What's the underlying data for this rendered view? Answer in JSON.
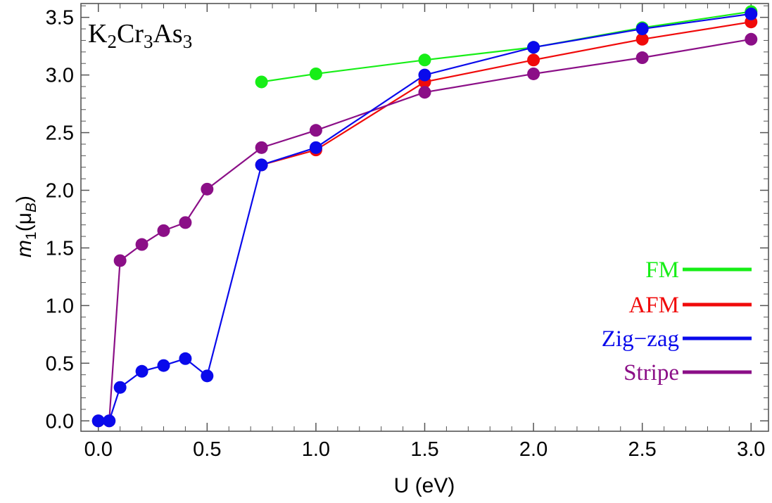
{
  "chart_data": {
    "type": "line",
    "title": "K2Cr3As3",
    "title_parts": [
      {
        "text": "K",
        "sub": false
      },
      {
        "text": "2",
        "sub": true
      },
      {
        "text": "Cr",
        "sub": false
      },
      {
        "text": "3",
        "sub": true
      },
      {
        "text": "As",
        "sub": false
      },
      {
        "text": "3",
        "sub": true
      }
    ],
    "xlabel": "U (eV)",
    "ylabel": {
      "m": "m",
      "m_sub": "1",
      "open": "(μ",
      "b_sub": "B",
      "close": ")"
    },
    "xlim": [
      -0.08,
      3.08
    ],
    "ylim": [
      -0.09,
      3.62
    ],
    "xticks": [
      "0.0",
      "0.5",
      "1.0",
      "1.5",
      "2.0",
      "2.5",
      "3.0"
    ],
    "yticks": [
      "0.0",
      "0.5",
      "1.0",
      "1.5",
      "2.0",
      "2.5",
      "3.0",
      "3.5"
    ],
    "legend_position": "right",
    "grid": false,
    "series": [
      {
        "name": "Stripe",
        "color": "#8B0F87",
        "x": [
          0.0,
          0.05,
          0.1,
          0.2,
          0.3,
          0.4,
          0.5,
          0.75,
          1.0,
          1.5,
          2.0,
          2.5,
          3.0
        ],
        "y": [
          0.0,
          0.0,
          1.39,
          1.53,
          1.65,
          1.72,
          2.01,
          2.37,
          2.52,
          2.85,
          3.01,
          3.15,
          3.31
        ]
      },
      {
        "name": "Zig-zag",
        "color": "#0A0AEB",
        "x": [
          0.0,
          0.05,
          0.1,
          0.2,
          0.3,
          0.4,
          0.5,
          0.75,
          1.0,
          1.5,
          2.0,
          2.5,
          3.0
        ],
        "y": [
          0.0,
          0.0,
          0.29,
          0.43,
          0.48,
          0.54,
          0.39,
          2.22,
          2.37,
          3.0,
          3.24,
          3.4,
          3.53
        ]
      },
      {
        "name": "AFM",
        "color": "#F00A0A",
        "x": [
          0.75,
          1.0,
          1.5,
          2.0,
          2.5,
          3.0
        ],
        "y": [
          2.22,
          2.35,
          2.94,
          3.13,
          3.31,
          3.46
        ]
      },
      {
        "name": "FM",
        "color": "#17EE17",
        "x": [
          0.75,
          1.0,
          1.5,
          2.0,
          2.5,
          3.0
        ],
        "y": [
          2.94,
          3.01,
          3.13,
          3.24,
          3.41,
          3.55
        ]
      }
    ],
    "draw_order": [
      "FM",
      "AFM",
      "Stripe",
      "Zig-zag"
    ],
    "legend_order": [
      "FM",
      "AFM",
      "Zig-zag",
      "Stripe"
    ],
    "legend_labels": {
      "FM": "FM",
      "AFM": "AFM",
      "Zig-zag": "Zig−zag",
      "Stripe": "Stripe"
    }
  }
}
